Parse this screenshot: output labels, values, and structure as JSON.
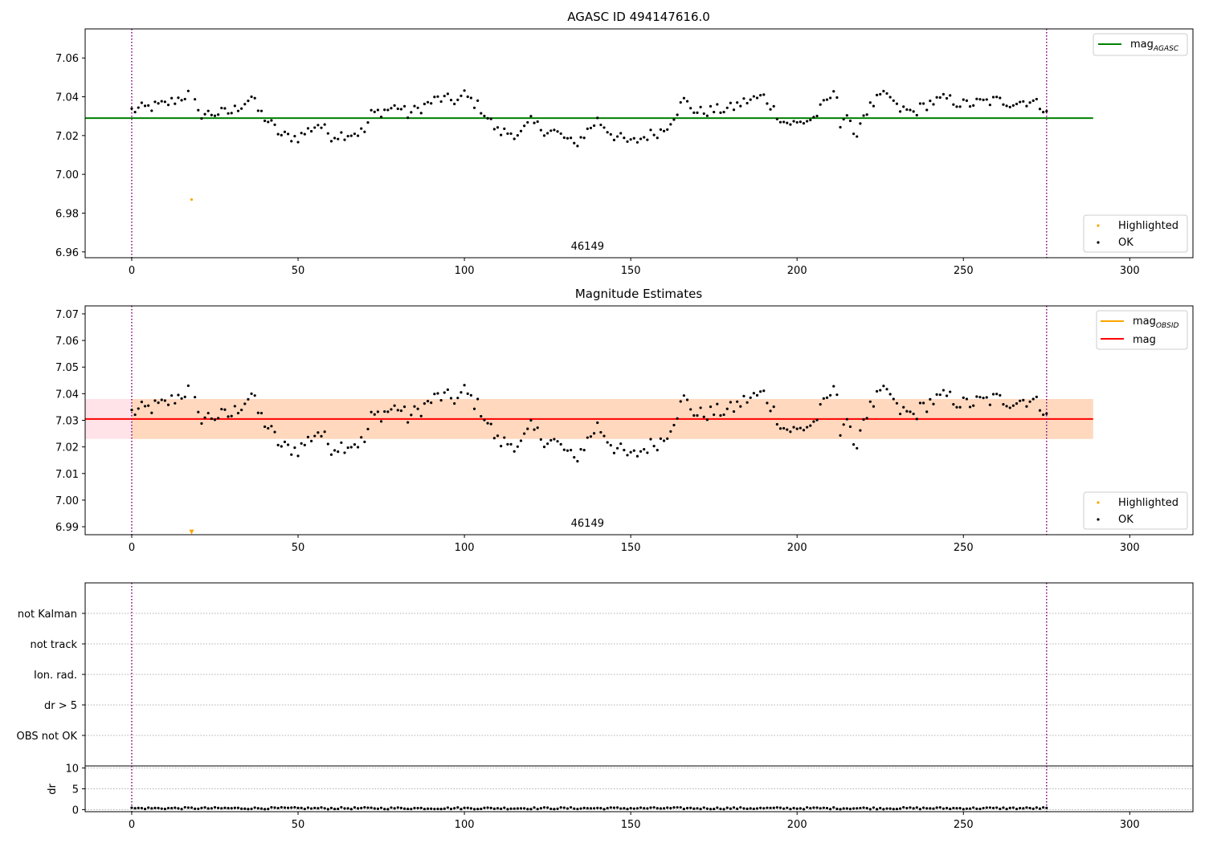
{
  "chart_data": [
    {
      "type": "scatter",
      "title": "AGASC ID 494147616.0",
      "xlabel": "",
      "ylabel": "",
      "xlim": [
        -14,
        319
      ],
      "ylim": [
        6.957,
        7.075
      ],
      "yticks": [
        6.96,
        6.98,
        7.0,
        7.02,
        7.04,
        7.06
      ],
      "xticks": [
        0,
        50,
        100,
        150,
        200,
        250,
        300
      ],
      "vlines": [
        0,
        275
      ],
      "reference_lines": [
        {
          "name": "mag",
          "sub": "AGASC",
          "value": 7.029,
          "x_range": [
            -14,
            289
          ],
          "color": "#008000"
        }
      ],
      "series": [
        {
          "name": "Highlighted",
          "color": "#ffa500",
          "marker": "dot",
          "x": [
            18
          ],
          "y": [
            6.987
          ]
        },
        {
          "name": "OK",
          "color": "#000000",
          "marker": "dot",
          "x": [],
          "y": []
        }
      ],
      "annotation": "46149",
      "annotation_x": 137,
      "grid": false,
      "legend": [
        "top-right",
        "bottom-right"
      ]
    },
    {
      "type": "scatter",
      "title": "Magnitude Estimates",
      "xlabel": "",
      "ylabel": "",
      "xlim": [
        -14,
        319
      ],
      "ylim": [
        6.987,
        7.073
      ],
      "yticks": [
        6.99,
        7.0,
        7.01,
        7.02,
        7.03,
        7.04,
        7.05,
        7.06,
        7.07
      ],
      "xticks": [
        0,
        50,
        100,
        150,
        200,
        250,
        300
      ],
      "vlines": [
        0,
        275
      ],
      "reference_lines": [
        {
          "name": "mag",
          "sub": "OBSID",
          "value": 7.0305,
          "band": [
            7.023,
            7.038
          ],
          "x_range": [
            -14,
            289
          ],
          "color": "#ffa500"
        },
        {
          "name": "mag",
          "sub": "",
          "value": 7.0305,
          "band": [
            7.023,
            7.038
          ],
          "x_range": [
            -14,
            289
          ],
          "color": "#ff0000"
        }
      ],
      "series": [
        {
          "name": "Highlighted",
          "color": "#ffa500",
          "marker": "triangle-down",
          "x": [
            18
          ],
          "y": [
            6.988
          ]
        },
        {
          "name": "OK",
          "color": "#000000",
          "marker": "dot",
          "x": [],
          "y": []
        }
      ],
      "annotation": "46149",
      "annotation_x": 137,
      "grid": false,
      "legend": [
        "top-right",
        "bottom-right"
      ]
    },
    {
      "type": "scatter",
      "title": "",
      "xlabel": "",
      "ylabel": "",
      "xlim": [
        -14,
        319
      ],
      "categories": [
        "OBS not OK",
        "dr > 5",
        "Ion. rad.",
        "not track",
        "not Kalman"
      ],
      "grid": true,
      "vlines": [
        0,
        275
      ]
    },
    {
      "type": "scatter",
      "title": "",
      "xlabel": "",
      "ylabel": "dr",
      "xlim": [
        -14,
        319
      ],
      "ylim": [
        -0.5,
        10.5
      ],
      "yticks": [
        0,
        5,
        10
      ],
      "xticks": [
        0,
        50,
        100,
        150,
        200,
        250,
        300
      ],
      "vlines": [
        0,
        275
      ],
      "grid": true,
      "series": [
        {
          "name": "dr",
          "color": "#000000",
          "marker": "dot",
          "x": [],
          "y": []
        }
      ]
    }
  ],
  "legend_labels": {
    "mag_agasc": "mag",
    "mag_agasc_sub": "AGASC",
    "mag_obsid": "mag",
    "mag_obsid_sub": "OBSID",
    "mag": "mag",
    "highlighted": "Highlighted",
    "ok": "OK"
  },
  "mag_trace": {
    "x": [
      0,
      10,
      18,
      20,
      30,
      36,
      38,
      45,
      50,
      56,
      60,
      70,
      72,
      80,
      83,
      92,
      98,
      100,
      105,
      110,
      117,
      120,
      124,
      127,
      130,
      133,
      140,
      145,
      150,
      155,
      160,
      166,
      170,
      175,
      180,
      185,
      190,
      196,
      200,
      205,
      210,
      212,
      213,
      215,
      216,
      217,
      220,
      225,
      228,
      230,
      235,
      240,
      245,
      250,
      255,
      260,
      265,
      270,
      275
    ],
    "y": [
      7.033,
      7.036,
      7.042,
      7.031,
      7.032,
      7.04,
      7.033,
      7.02,
      7.019,
      7.026,
      7.02,
      7.022,
      7.031,
      7.035,
      7.031,
      7.039,
      7.038,
      7.041,
      7.034,
      7.022,
      7.021,
      7.027,
      7.023,
      7.022,
      7.019,
      7.015,
      7.028,
      7.02,
      7.016,
      7.02,
      7.023,
      7.038,
      7.032,
      7.033,
      7.034,
      7.038,
      7.04,
      7.027,
      7.026,
      7.029,
      7.04,
      7.041,
      7.027,
      7.031,
      7.025,
      7.018,
      7.031,
      7.04,
      7.04,
      7.034,
      7.032,
      7.037,
      7.039,
      7.036,
      7.037,
      7.038,
      7.037,
      7.038,
      7.034
    ]
  }
}
